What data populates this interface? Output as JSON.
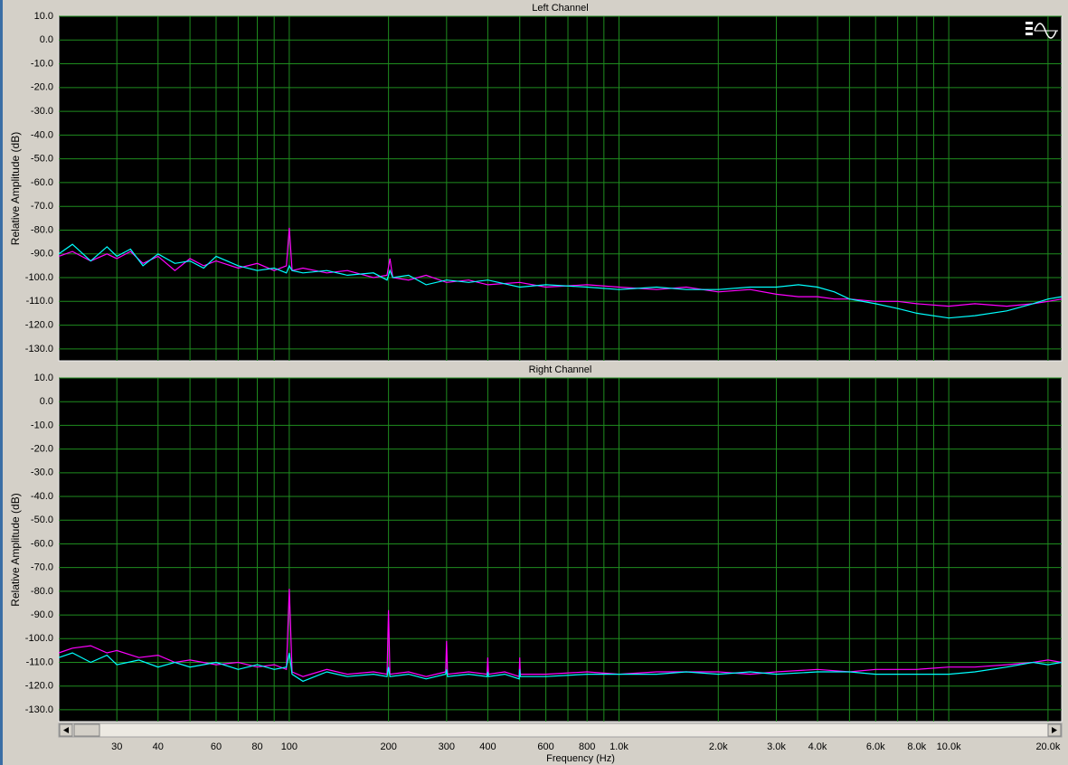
{
  "chart_data": [
    {
      "type": "line",
      "title": "Left Channel",
      "ylabel": "Relative Amplitude (dB)",
      "xscale": "log",
      "grid": true,
      "xlim": [
        20,
        22000
      ],
      "ylim": [
        -135,
        10
      ],
      "xticks": [
        30,
        40,
        50,
        60,
        70,
        80,
        90,
        100,
        200,
        300,
        400,
        500,
        600,
        700,
        800,
        900,
        1000,
        2000,
        3000,
        4000,
        5000,
        6000,
        7000,
        8000,
        9000,
        10000,
        20000
      ],
      "yticks": [
        {
          "value": 10,
          "label": "10.0"
        },
        {
          "value": 0,
          "label": "0.0"
        },
        {
          "value": -10,
          "label": "-10.0"
        },
        {
          "value": -20,
          "label": "-20.0"
        },
        {
          "value": -30,
          "label": "-30.0"
        },
        {
          "value": -40,
          "label": "-40.0"
        },
        {
          "value": -50,
          "label": "-50.0"
        },
        {
          "value": -60,
          "label": "-60.0"
        },
        {
          "value": -70,
          "label": "-70.0"
        },
        {
          "value": -80,
          "label": "-80.0"
        },
        {
          "value": -90,
          "label": "-90.0"
        },
        {
          "value": -100,
          "label": "-100.0"
        },
        {
          "value": -110,
          "label": "-110.0"
        },
        {
          "value": -120,
          "label": "-120.0"
        },
        {
          "value": -130,
          "label": "-130.0"
        }
      ],
      "x": [
        20,
        22,
        25,
        28,
        30,
        33,
        36,
        40,
        45,
        50,
        55,
        60,
        70,
        80,
        90,
        98,
        100,
        102,
        110,
        130,
        150,
        180,
        198,
        202,
        206,
        230,
        260,
        300,
        350,
        400,
        500,
        600,
        800,
        1000,
        1300,
        1600,
        2000,
        2500,
        3000,
        3500,
        4000,
        4500,
        5000,
        6000,
        7000,
        8000,
        10000,
        12000,
        15000,
        18000,
        20000,
        22000
      ],
      "series": [
        {
          "color": "#ff00ff",
          "values": [
            -91,
            -89,
            -93,
            -90,
            -92,
            -89,
            -94,
            -91,
            -97,
            -92,
            -95,
            -93,
            -96,
            -94,
            -97,
            -95,
            -79,
            -97,
            -96,
            -98,
            -97,
            -100,
            -99,
            -92,
            -100,
            -101,
            -99,
            -102,
            -101,
            -103,
            -102,
            -104,
            -103,
            -104,
            -105,
            -104,
            -106,
            -105,
            -107,
            -108,
            -108,
            -109,
            -109,
            -110,
            -110,
            -111,
            -112,
            -111,
            -112,
            -111,
            -110,
            -109
          ]
        },
        {
          "color": "#00ffff",
          "values": [
            -90,
            -86,
            -93,
            -87,
            -91,
            -88,
            -95,
            -90,
            -94,
            -93,
            -96,
            -91,
            -95,
            -97,
            -96,
            -98,
            -95,
            -97,
            -98,
            -97,
            -99,
            -98,
            -101,
            -97,
            -100,
            -99,
            -103,
            -101,
            -102,
            -101,
            -104,
            -103,
            -104,
            -105,
            -104,
            -105,
            -105,
            -104,
            -104,
            -103,
            -104,
            -106,
            -109,
            -111,
            -113,
            -115,
            -117,
            -116,
            -114,
            -111,
            -109,
            -108
          ]
        }
      ]
    },
    {
      "type": "line",
      "title": "Right Channel",
      "ylabel": "Relative Amplitude (dB)",
      "xlabel": "Frequency (Hz)",
      "xscale": "log",
      "grid": true,
      "xlim": [
        20,
        22000
      ],
      "ylim": [
        -135,
        10
      ],
      "xticks": [
        30,
        40,
        60,
        80,
        100,
        200,
        300,
        400,
        600,
        800,
        {
          "value": 1000,
          "label": "1.0k"
        },
        {
          "value": 2000,
          "label": "2.0k"
        },
        {
          "value": 3000,
          "label": "3.0k"
        },
        {
          "value": 4000,
          "label": "4.0k"
        },
        {
          "value": 6000,
          "label": "6.0k"
        },
        {
          "value": 8000,
          "label": "8.0k"
        },
        {
          "value": 10000,
          "label": "10.0k"
        },
        {
          "value": 20000,
          "label": "20.0k"
        }
      ],
      "xminor": [
        50,
        70,
        90,
        500,
        700,
        900,
        5000,
        7000,
        9000
      ],
      "yticks": [
        {
          "value": 10,
          "label": "10.0"
        },
        {
          "value": 0,
          "label": "0.0"
        },
        {
          "value": -10,
          "label": "-10.0"
        },
        {
          "value": -20,
          "label": "-20.0"
        },
        {
          "value": -30,
          "label": "-30.0"
        },
        {
          "value": -40,
          "label": "-40.0"
        },
        {
          "value": -50,
          "label": "-50.0"
        },
        {
          "value": -60,
          "label": "-60.0"
        },
        {
          "value": -70,
          "label": "-70.0"
        },
        {
          "value": -80,
          "label": "-80.0"
        },
        {
          "value": -90,
          "label": "-90.0"
        },
        {
          "value": -100,
          "label": "-100.0"
        },
        {
          "value": -110,
          "label": "-110.0"
        },
        {
          "value": -120,
          "label": "-120.0"
        },
        {
          "value": -130,
          "label": "-130.0"
        }
      ],
      "x": [
        20,
        22,
        25,
        28,
        30,
        35,
        40,
        45,
        50,
        60,
        70,
        80,
        90,
        98,
        100,
        102,
        110,
        130,
        150,
        180,
        198,
        200,
        202,
        230,
        260,
        298,
        300,
        302,
        350,
        398,
        400,
        402,
        450,
        498,
        500,
        502,
        600,
        800,
        1000,
        1300,
        1600,
        2000,
        2500,
        3000,
        4000,
        5000,
        6000,
        8000,
        10000,
        12000,
        15000,
        18000,
        20000,
        22000
      ],
      "series": [
        {
          "color": "#ff00ff",
          "values": [
            -106,
            -104,
            -103,
            -106,
            -105,
            -108,
            -107,
            -110,
            -109,
            -111,
            -110,
            -112,
            -111,
            -113,
            -79,
            -114,
            -116,
            -113,
            -115,
            -114,
            -115,
            -88,
            -115,
            -114,
            -116,
            -114,
            -101,
            -115,
            -114,
            -115,
            -108,
            -115,
            -114,
            -116,
            -108,
            -115,
            -115,
            -114,
            -115,
            -114,
            -114,
            -114,
            -115,
            -114,
            -113,
            -114,
            -113,
            -113,
            -112,
            -112,
            -111,
            -110,
            -109,
            -110
          ]
        },
        {
          "color": "#00ffff",
          "values": [
            -108,
            -106,
            -110,
            -107,
            -111,
            -109,
            -112,
            -110,
            -112,
            -110,
            -113,
            -111,
            -113,
            -112,
            -106,
            -115,
            -118,
            -114,
            -116,
            -115,
            -116,
            -112,
            -116,
            -115,
            -117,
            -115,
            -113,
            -116,
            -115,
            -116,
            -114,
            -116,
            -115,
            -117,
            -113,
            -116,
            -116,
            -115,
            -115,
            -115,
            -114,
            -115,
            -114,
            -115,
            -114,
            -114,
            -115,
            -115,
            -115,
            -114,
            -112,
            -110,
            -111,
            -110
          ]
        }
      ]
    }
  ]
}
